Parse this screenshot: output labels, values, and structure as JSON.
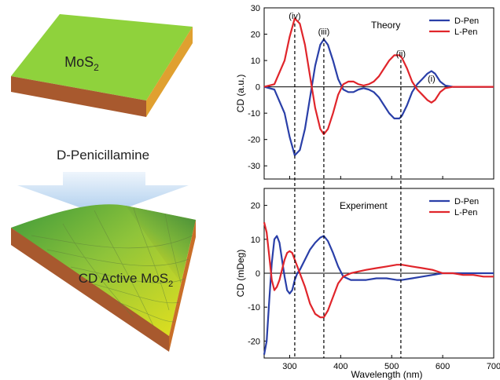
{
  "left_panel": {
    "top_material": "MoS",
    "top_material_sub": "2",
    "process_label": "D-Penicillamine",
    "bottom_material": "CD Active MoS",
    "bottom_material_sub": "2"
  },
  "colors": {
    "d_pen": "#2a3fa8",
    "l_pen": "#e0252b",
    "slab_top": "#8fd23c",
    "slab_side": "#c0702a",
    "arrow": "#bcd6ee"
  },
  "chart_data": [
    {
      "type": "line",
      "panel": "Theory",
      "annotation": "Theory",
      "xlim": [
        250,
        700
      ],
      "ylim": [
        -35,
        30
      ],
      "yticks": [
        -30,
        -20,
        -10,
        0,
        10,
        20,
        30
      ],
      "xticks": [
        300,
        400,
        500,
        600,
        700
      ],
      "ylabel": "CD (a.u.)",
      "legend_position": "top-right",
      "peak_labels": [
        {
          "text": "(iv)",
          "x": 310
        },
        {
          "text": "(iii)",
          "x": 367
        },
        {
          "text": "(ii)",
          "x": 518
        },
        {
          "text": "(i)",
          "x": 578
        }
      ],
      "series": [
        {
          "name": "D-Pen",
          "color": "#2a3fa8",
          "x": [
            250,
            270,
            290,
            300,
            310,
            320,
            330,
            340,
            350,
            360,
            367,
            375,
            385,
            395,
            405,
            415,
            425,
            435,
            445,
            455,
            465,
            475,
            485,
            495,
            505,
            515,
            520,
            530,
            540,
            550,
            560,
            570,
            578,
            585,
            595,
            605,
            620,
            640,
            660,
            680,
            700
          ],
          "values": [
            0,
            -1,
            -10,
            -19,
            -26,
            -24,
            -16,
            -4,
            8,
            16,
            18,
            16,
            10,
            3,
            -1,
            -2,
            -2,
            -1,
            -0.5,
            -1,
            -2,
            -4,
            -7,
            -10,
            -12,
            -12,
            -11,
            -7,
            -2,
            1,
            3,
            5,
            6,
            5,
            2,
            0.5,
            0,
            0,
            0,
            0,
            0
          ]
        },
        {
          "name": "L-Pen",
          "color": "#e0252b",
          "x": [
            250,
            270,
            290,
            300,
            310,
            320,
            330,
            340,
            350,
            360,
            367,
            375,
            385,
            395,
            405,
            415,
            425,
            435,
            445,
            455,
            465,
            475,
            485,
            495,
            505,
            515,
            520,
            530,
            540,
            550,
            560,
            570,
            578,
            585,
            595,
            605,
            620,
            640,
            660,
            680,
            700
          ],
          "values": [
            0,
            1,
            10,
            19,
            26,
            24,
            16,
            4,
            -8,
            -16,
            -18,
            -16,
            -10,
            -3,
            1,
            2,
            2,
            1,
            0.5,
            1,
            2,
            4,
            7,
            10,
            12,
            12,
            11,
            7,
            2,
            -1,
            -3,
            -5,
            -6,
            -5,
            -2,
            -0.5,
            0,
            0,
            0,
            0,
            0
          ]
        }
      ]
    },
    {
      "type": "line",
      "panel": "Experiment",
      "annotation": "Experiment",
      "xlim": [
        250,
        700
      ],
      "ylim": [
        -25,
        25
      ],
      "yticks": [
        -20,
        -10,
        0,
        10,
        20
      ],
      "xticks": [
        300,
        400,
        500,
        600,
        700
      ],
      "xlabel": "Wavelength (nm)",
      "ylabel": "CD (mDeg)",
      "legend_position": "top-right",
      "series": [
        {
          "name": "D-Pen",
          "color": "#2a3fa8",
          "x": [
            250,
            255,
            260,
            265,
            270,
            275,
            280,
            285,
            290,
            295,
            300,
            305,
            310,
            315,
            320,
            330,
            340,
            350,
            360,
            367,
            375,
            385,
            395,
            405,
            420,
            435,
            450,
            470,
            490,
            510,
            520,
            540,
            560,
            580,
            600,
            620,
            640,
            660,
            680,
            700
          ],
          "values": [
            -24,
            -20,
            -8,
            3,
            10,
            11,
            9,
            4,
            -1,
            -5,
            -6,
            -5,
            -2,
            0,
            1,
            4,
            7,
            9,
            10.5,
            11,
            9.5,
            6,
            2,
            -1,
            -2,
            -2,
            -2,
            -1.5,
            -1.5,
            -2,
            -2,
            -1.5,
            -1,
            -0.5,
            0,
            0,
            0,
            0,
            0,
            0
          ]
        },
        {
          "name": "L-Pen",
          "color": "#e0252b",
          "x": [
            250,
            255,
            260,
            265,
            270,
            275,
            280,
            285,
            290,
            295,
            300,
            305,
            310,
            315,
            320,
            330,
            340,
            350,
            360,
            367,
            375,
            385,
            395,
            405,
            420,
            435,
            450,
            470,
            490,
            510,
            520,
            540,
            560,
            580,
            600,
            620,
            640,
            660,
            680,
            700
          ],
          "values": [
            15,
            12,
            5,
            -2,
            -5,
            -4,
            -2,
            1,
            4,
            6,
            6.5,
            6,
            4,
            2,
            0,
            -4,
            -9,
            -12,
            -13,
            -13,
            -11,
            -7,
            -3,
            -1,
            0,
            0.5,
            1,
            1.5,
            2,
            2.5,
            2.5,
            2,
            1.5,
            1,
            0,
            0,
            -0.5,
            -0.5,
            -1,
            -1
          ]
        }
      ]
    }
  ]
}
